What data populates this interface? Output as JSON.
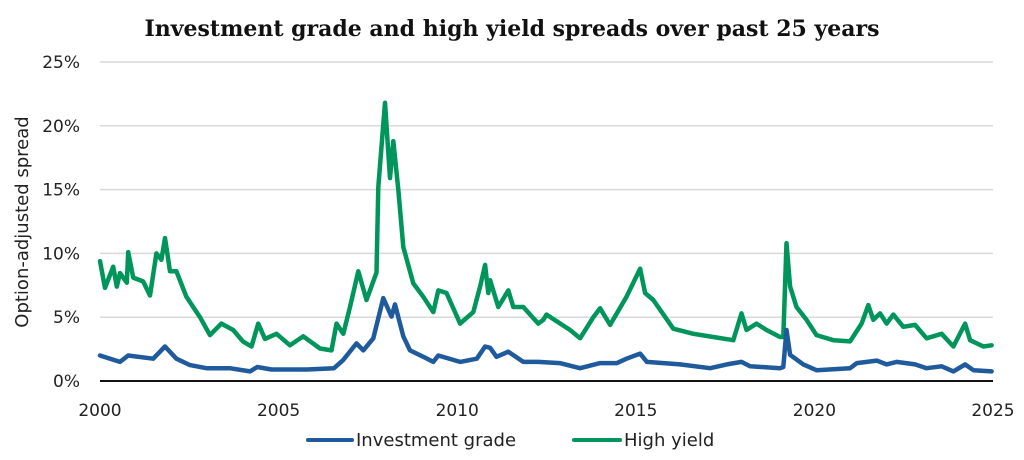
{
  "chart_data": {
    "type": "line",
    "title": "Investment grade and high yield spreads over past 25 years",
    "xlabel": "",
    "ylabel": "Option-adjusted spread",
    "xlim": [
      2000,
      2025
    ],
    "ylim": [
      0,
      25
    ],
    "x_ticks": [
      "2000",
      "2005",
      "2010",
      "2015",
      "2020",
      "2025"
    ],
    "y_ticks": [
      "0%",
      "5%",
      "10%",
      "15%",
      "20%",
      "25%"
    ],
    "grid": "horizontal",
    "legend": "bottom",
    "series": [
      {
        "name": "Investment grade",
        "color": "#1f5b9c",
        "points": [
          [
            2000.0,
            2.0
          ],
          [
            2000.56,
            1.5
          ],
          [
            2000.79,
            2.0
          ],
          [
            2001.49,
            1.75
          ],
          [
            2001.82,
            2.7
          ],
          [
            2002.14,
            1.75
          ],
          [
            2002.52,
            1.25
          ],
          [
            2002.98,
            1.0
          ],
          [
            2003.63,
            1.0
          ],
          [
            2004.2,
            0.75
          ],
          [
            2004.4,
            1.1
          ],
          [
            2004.8,
            0.9
          ],
          [
            2005.8,
            0.9
          ],
          [
            2006.55,
            1.0
          ],
          [
            2006.81,
            1.65
          ],
          [
            2007.18,
            2.95
          ],
          [
            2007.37,
            2.4
          ],
          [
            2007.65,
            3.35
          ],
          [
            2007.93,
            6.5
          ],
          [
            2008.16,
            5.05
          ],
          [
            2008.26,
            6.0
          ],
          [
            2008.49,
            3.5
          ],
          [
            2008.68,
            2.4
          ],
          [
            2009.05,
            1.9
          ],
          [
            2009.33,
            1.5
          ],
          [
            2009.47,
            2.0
          ],
          [
            2010.08,
            1.5
          ],
          [
            2010.55,
            1.75
          ],
          [
            2010.78,
            2.7
          ],
          [
            2010.92,
            2.6
          ],
          [
            2011.1,
            1.9
          ],
          [
            2011.43,
            2.3
          ],
          [
            2011.85,
            1.5
          ],
          [
            2012.27,
            1.5
          ],
          [
            2012.87,
            1.4
          ],
          [
            2013.44,
            1.0
          ],
          [
            2014.0,
            1.4
          ],
          [
            2014.47,
            1.4
          ],
          [
            2014.74,
            1.75
          ],
          [
            2015.12,
            2.15
          ],
          [
            2015.31,
            1.5
          ],
          [
            2016.24,
            1.3
          ],
          [
            2017.08,
            1.0
          ],
          [
            2017.55,
            1.3
          ],
          [
            2017.96,
            1.5
          ],
          [
            2018.2,
            1.15
          ],
          [
            2019.04,
            1.0
          ],
          [
            2019.13,
            1.1
          ],
          [
            2019.22,
            4.0
          ],
          [
            2019.32,
            2.05
          ],
          [
            2019.69,
            1.3
          ],
          [
            2020.06,
            0.85
          ],
          [
            2021.0,
            1.0
          ],
          [
            2021.19,
            1.4
          ],
          [
            2021.75,
            1.6
          ],
          [
            2022.02,
            1.3
          ],
          [
            2022.3,
            1.5
          ],
          [
            2022.82,
            1.3
          ],
          [
            2023.14,
            1.0
          ],
          [
            2023.56,
            1.15
          ],
          [
            2023.89,
            0.75
          ],
          [
            2024.22,
            1.3
          ],
          [
            2024.45,
            0.85
          ],
          [
            2024.96,
            0.75
          ]
        ]
      },
      {
        "name": "High yield",
        "color": "#00955a",
        "points": [
          [
            2000.0,
            9.4
          ],
          [
            2000.14,
            7.3
          ],
          [
            2000.37,
            8.96
          ],
          [
            2000.47,
            7.4
          ],
          [
            2000.56,
            8.46
          ],
          [
            2000.75,
            7.7
          ],
          [
            2000.79,
            10.1
          ],
          [
            2000.93,
            8.1
          ],
          [
            2001.21,
            7.8
          ],
          [
            2001.4,
            6.7
          ],
          [
            2001.58,
            10.0
          ],
          [
            2001.72,
            9.5
          ],
          [
            2001.82,
            11.2
          ],
          [
            2001.96,
            8.6
          ],
          [
            2002.14,
            8.6
          ],
          [
            2002.42,
            6.6
          ],
          [
            2002.8,
            5.0
          ],
          [
            2003.08,
            3.6
          ],
          [
            2003.4,
            4.5
          ],
          [
            2003.73,
            4.0
          ],
          [
            2004.0,
            3.1
          ],
          [
            2004.24,
            2.7
          ],
          [
            2004.43,
            4.5
          ],
          [
            2004.62,
            3.3
          ],
          [
            2004.94,
            3.7
          ],
          [
            2005.32,
            2.8
          ],
          [
            2005.69,
            3.5
          ],
          [
            2006.16,
            2.55
          ],
          [
            2006.48,
            2.4
          ],
          [
            2006.62,
            4.5
          ],
          [
            2006.81,
            3.7
          ],
          [
            2007.0,
            5.8
          ],
          [
            2007.23,
            8.6
          ],
          [
            2007.46,
            6.35
          ],
          [
            2007.74,
            8.5
          ],
          [
            2007.79,
            15.2
          ],
          [
            2007.98,
            21.8
          ],
          [
            2008.12,
            15.9
          ],
          [
            2008.21,
            18.8
          ],
          [
            2008.35,
            15.0
          ],
          [
            2008.49,
            10.5
          ],
          [
            2008.77,
            7.65
          ],
          [
            2009.05,
            6.6
          ],
          [
            2009.33,
            5.4
          ],
          [
            2009.47,
            7.1
          ],
          [
            2009.7,
            6.9
          ],
          [
            2010.08,
            4.5
          ],
          [
            2010.45,
            5.4
          ],
          [
            2010.64,
            7.4
          ],
          [
            2010.78,
            9.1
          ],
          [
            2010.87,
            6.9
          ],
          [
            2010.92,
            7.9
          ],
          [
            2011.15,
            5.8
          ],
          [
            2011.43,
            7.1
          ],
          [
            2011.57,
            5.8
          ],
          [
            2011.85,
            5.8
          ],
          [
            2012.27,
            4.5
          ],
          [
            2012.41,
            4.8
          ],
          [
            2012.5,
            5.2
          ],
          [
            2013.16,
            4.0
          ],
          [
            2013.44,
            3.35
          ],
          [
            2013.81,
            5.0
          ],
          [
            2014.0,
            5.7
          ],
          [
            2014.28,
            4.4
          ],
          [
            2014.74,
            6.6
          ],
          [
            2015.12,
            8.8
          ],
          [
            2015.26,
            6.9
          ],
          [
            2015.49,
            6.35
          ],
          [
            2016.05,
            4.1
          ],
          [
            2016.61,
            3.7
          ],
          [
            2017.17,
            3.45
          ],
          [
            2017.73,
            3.2
          ],
          [
            2017.96,
            5.3
          ],
          [
            2018.1,
            4.0
          ],
          [
            2018.38,
            4.5
          ],
          [
            2018.66,
            4.0
          ],
          [
            2019.04,
            3.45
          ],
          [
            2019.13,
            3.45
          ],
          [
            2019.22,
            10.8
          ],
          [
            2019.32,
            7.4
          ],
          [
            2019.5,
            5.8
          ],
          [
            2019.78,
            4.8
          ],
          [
            2020.06,
            3.6
          ],
          [
            2020.53,
            3.2
          ],
          [
            2021.0,
            3.1
          ],
          [
            2021.32,
            4.5
          ],
          [
            2021.51,
            5.95
          ],
          [
            2021.65,
            4.8
          ],
          [
            2021.84,
            5.3
          ],
          [
            2022.02,
            4.5
          ],
          [
            2022.21,
            5.2
          ],
          [
            2022.49,
            4.25
          ],
          [
            2022.82,
            4.4
          ],
          [
            2023.14,
            3.35
          ],
          [
            2023.56,
            3.7
          ],
          [
            2023.89,
            2.7
          ],
          [
            2024.22,
            4.5
          ],
          [
            2024.36,
            3.2
          ],
          [
            2024.73,
            2.7
          ],
          [
            2024.96,
            2.8
          ]
        ]
      }
    ]
  }
}
